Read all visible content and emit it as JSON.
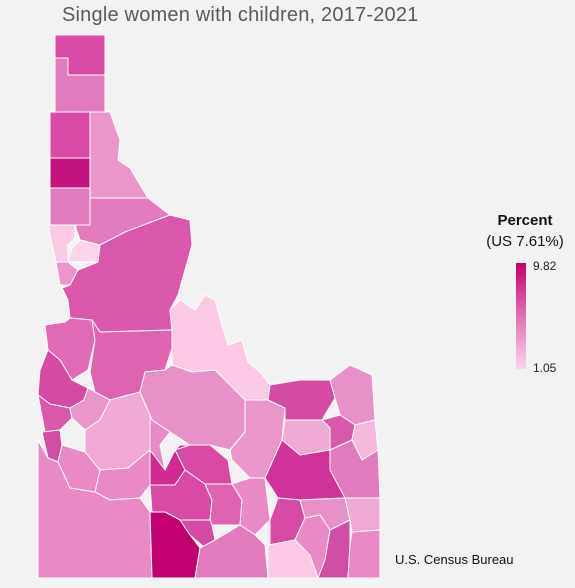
{
  "title": "Single women with children, 2017-2021",
  "legend": {
    "title": "Percent",
    "subtitle": "(US 7.61%)",
    "max_label": "9.82",
    "min_label": "1.05",
    "color_high": "#c2006f",
    "color_low": "#fdd3ec"
  },
  "source": "U.S. Census Bureau"
}
